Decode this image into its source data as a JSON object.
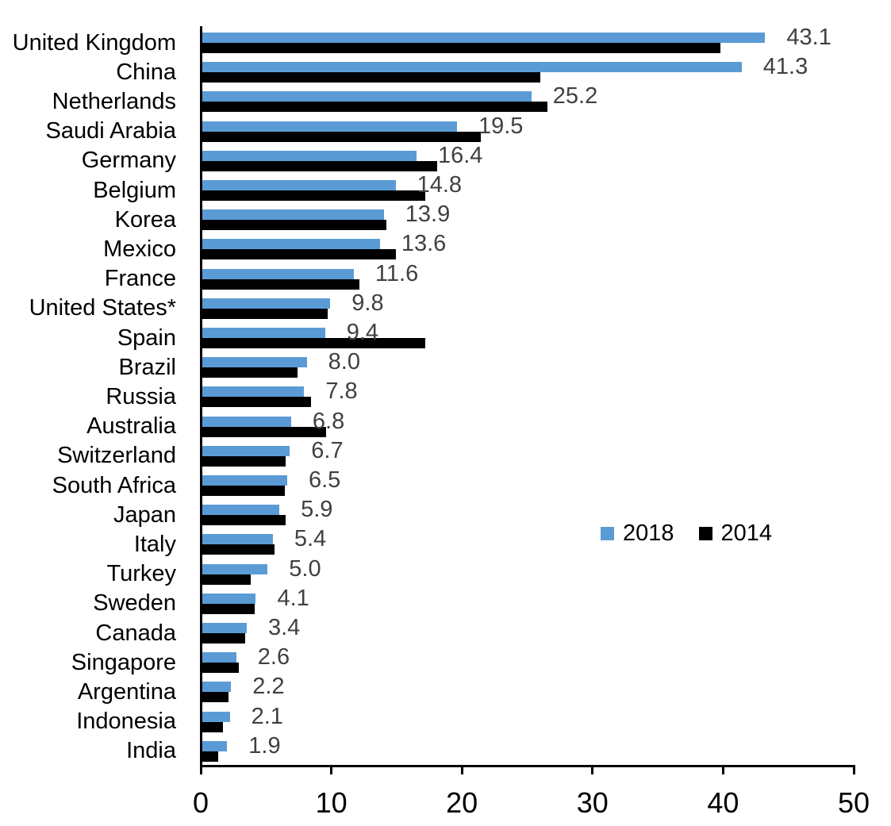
{
  "chart_data": {
    "type": "bar",
    "orientation": "horizontal",
    "title": "",
    "xlabel": "",
    "ylabel": "",
    "xlim": [
      0,
      50
    ],
    "x_ticks": [
      "0",
      "10",
      "20",
      "30",
      "40",
      "50"
    ],
    "grid": false,
    "legend_position": "middle-right",
    "categories": [
      "United Kingdom",
      "China",
      "Netherlands",
      "Saudi Arabia",
      "Germany",
      "Belgium",
      "Korea",
      "Mexico",
      "France",
      "United States*",
      "Spain",
      "Brazil",
      "Russia",
      "Australia",
      "Switzerland",
      "South Africa",
      "Japan",
      "Italy",
      "Turkey",
      "Sweden",
      "Canada",
      "Singapore",
      "Argentina",
      "Indonesia",
      "India"
    ],
    "series": [
      {
        "name": "2018",
        "color": "#5B9BD5",
        "values": [
          43.1,
          41.3,
          25.2,
          19.5,
          16.4,
          14.8,
          13.9,
          13.6,
          11.6,
          9.8,
          9.4,
          8.0,
          7.8,
          6.8,
          6.7,
          6.5,
          5.9,
          5.4,
          5.0,
          4.1,
          3.4,
          2.6,
          2.2,
          2.1,
          1.9
        ]
      },
      {
        "name": "2014",
        "color": "#000000",
        "values": [
          39.7,
          25.9,
          26.4,
          21.3,
          18.0,
          17.1,
          14.1,
          14.8,
          12.0,
          9.6,
          17.1,
          7.3,
          8.3,
          9.5,
          6.4,
          6.3,
          6.4,
          5.5,
          3.7,
          4.0,
          3.3,
          2.8,
          2.0,
          1.6,
          1.2
        ]
      }
    ],
    "data_labels": [
      "43.1",
      "41.3",
      "25.2",
      "19.5",
      "16.4",
      "14.8",
      "13.9",
      "13.6",
      "11.6",
      "9.8",
      "9.4",
      "8.0",
      "7.8",
      "6.8",
      "6.7",
      "6.5",
      "5.9",
      "5.4",
      "5.0",
      "4.1",
      "3.4",
      "2.6",
      "2.2",
      "2.1",
      "1.9"
    ]
  },
  "legend": {
    "items": [
      {
        "label": "2018",
        "color": "#5B9BD5"
      },
      {
        "label": "2014",
        "color": "#000000"
      }
    ]
  },
  "colors": {
    "bar_2018": "#5B9BD5",
    "bar_2014": "#000000",
    "value_label": "#404040",
    "axis": "#000000",
    "text": "#000000",
    "background": "#FFFFFF"
  }
}
